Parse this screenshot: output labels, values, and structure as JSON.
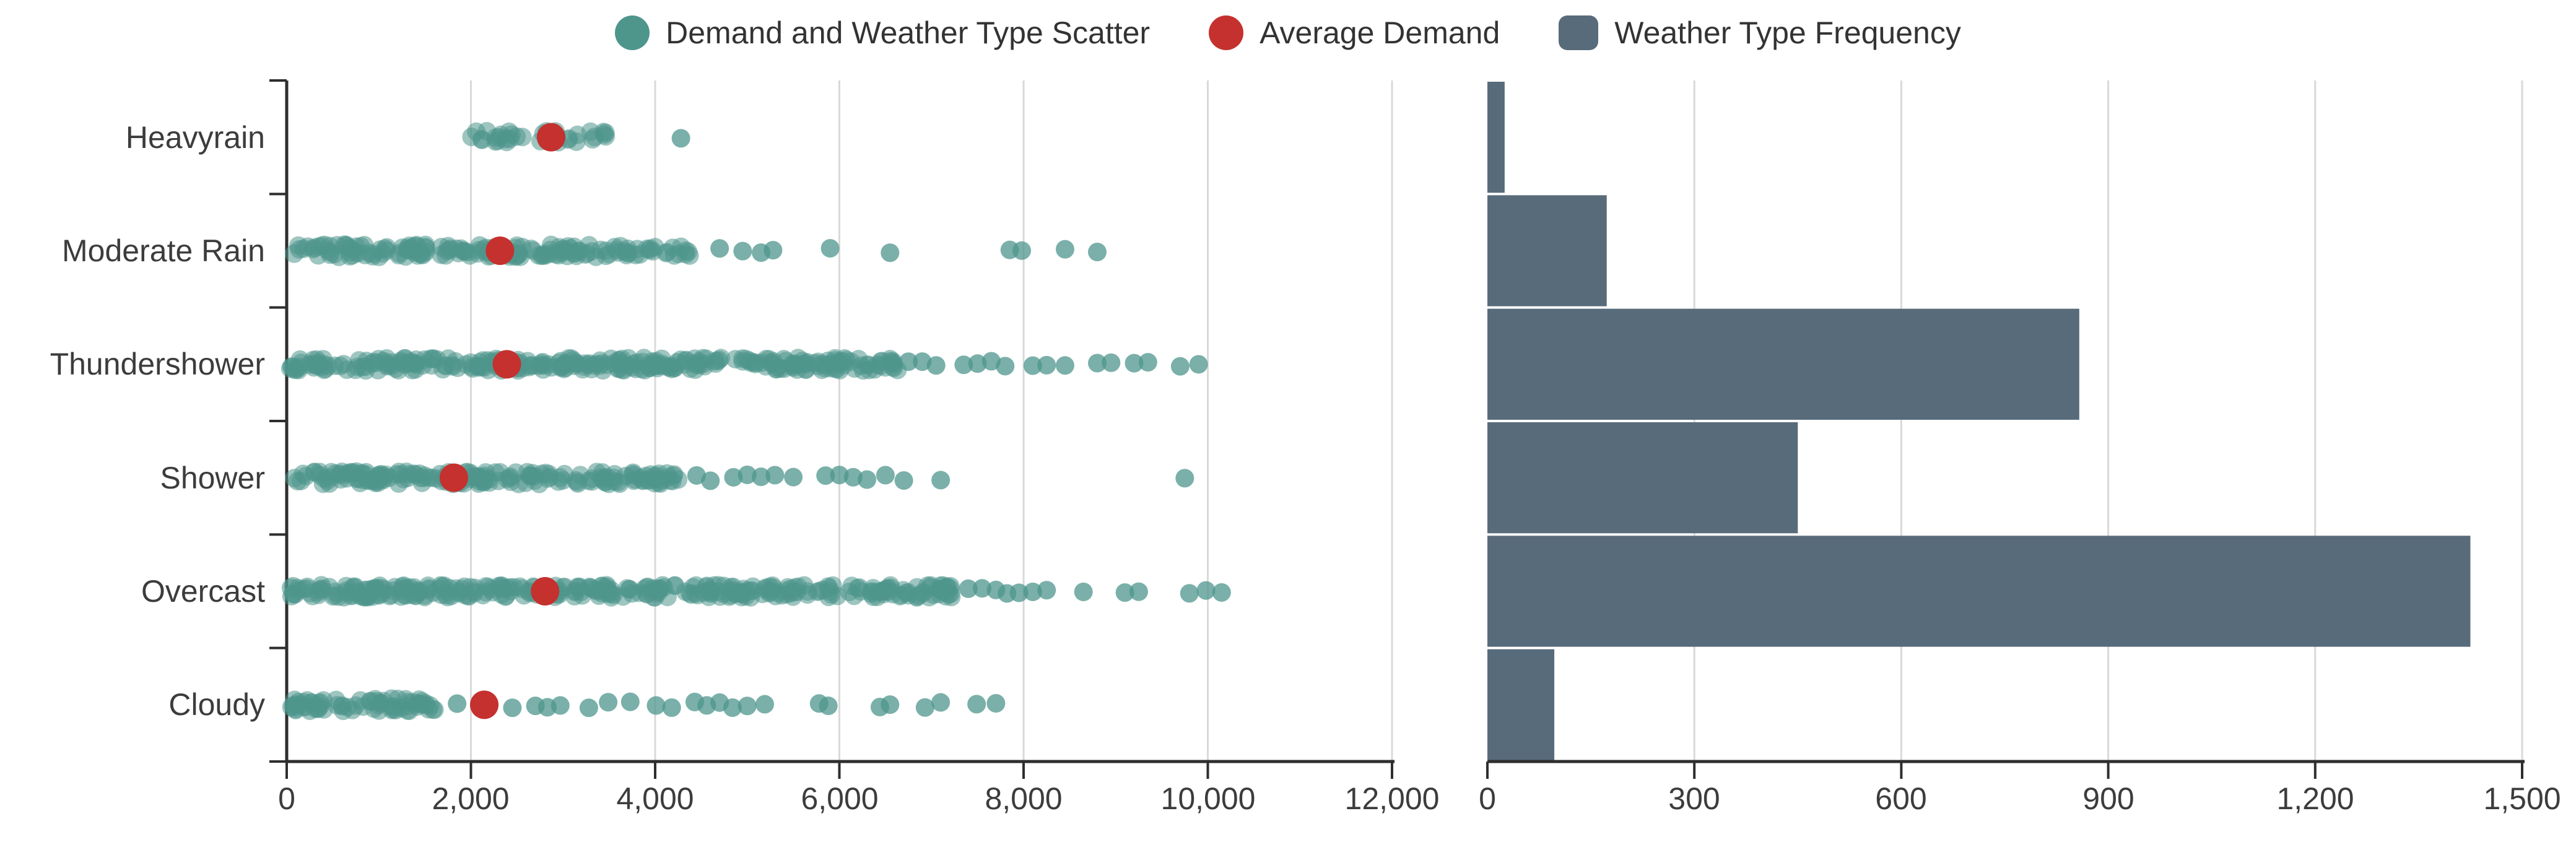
{
  "legend": {
    "items": [
      {
        "label": "Demand and Weather Type Scatter",
        "swatch": "circle",
        "color": "#4e958c"
      },
      {
        "label": "Average Demand",
        "swatch": "circle",
        "color": "#c4312e"
      },
      {
        "label": "Weather Type Frequency",
        "swatch": "round-rect",
        "color": "#586b7a"
      }
    ]
  },
  "chart_data": [
    {
      "type": "scatter",
      "title": "Demand and Weather Type Scatter",
      "orientation": "horizontal-strip",
      "categories": [
        "Heavyrain",
        "Moderate Rain",
        "Thundershower",
        "Shower",
        "Overcast",
        "Cloudy"
      ],
      "xlabel": "",
      "ylabel": "",
      "xlim": [
        0,
        12000
      ],
      "xticks": [
        0,
        2000,
        4000,
        6000,
        8000,
        10000,
        12000
      ],
      "xtick_labels": [
        "0",
        "2,000",
        "4,000",
        "6,000",
        "8,000",
        "10,000",
        "12,000"
      ],
      "grid": true,
      "legend_position": "top",
      "series": [
        {
          "name": "Demand and Weather Type Scatter",
          "color": "#4e958c",
          "opacity": 0.55,
          "dense_bands": [
            [
              [
                2000,
                3550,
                35
              ]
            ],
            [
              [
                40,
                4400,
                170
              ]
            ],
            [
              [
                30,
                6100,
                270
              ],
              [
                6100,
                6650,
                22
              ]
            ],
            [
              [
                30,
                4300,
                180
              ]
            ],
            [
              [
                30,
                7250,
                330
              ]
            ],
            [
              [
                30,
                1650,
                70
              ]
            ]
          ],
          "outlier_points": [
            [
              4280
            ],
            [
              4700,
              4950,
              5150,
              5280,
              5900,
              6550,
              7850,
              7980,
              8450,
              8800
            ],
            [
              6750,
              6900,
              7050,
              7350,
              7500,
              7650,
              7800,
              8100,
              8250,
              8450,
              8800,
              8950,
              9200,
              9350,
              9700,
              9900
            ],
            [
              4450,
              4600,
              4850,
              5000,
              5150,
              5300,
              5500,
              5850,
              6000,
              6150,
              6300,
              6500,
              6700,
              7100,
              9750
            ],
            [
              7400,
              7550,
              7700,
              7820,
              7950,
              8100,
              8250,
              8650,
              9100,
              9250,
              9800,
              9980,
              10150
            ],
            [
              1850,
              2450,
              2700,
              2830,
              2970,
              3280,
              3490,
              3730,
              4010,
              4180,
              4430,
              4560,
              4700,
              4840,
              5000,
              5190,
              5780,
              5880,
              6440,
              6550,
              6930,
              7100,
              7490,
              7700
            ]
          ]
        },
        {
          "name": "Average Demand",
          "color": "#c4312e",
          "values": [
            2870,
            2315,
            2390,
            1815,
            2805,
            2145
          ]
        }
      ]
    },
    {
      "type": "bar",
      "title": "Weather Type Frequency",
      "orientation": "horizontal",
      "categories": [
        "Heavyrain",
        "Moderate Rain",
        "Thundershower",
        "Shower",
        "Overcast",
        "Cloudy"
      ],
      "values": [
        25,
        173,
        858,
        450,
        1425,
        97
      ],
      "color": "#586b7a",
      "xlim": [
        0,
        1500
      ],
      "xticks": [
        0,
        300,
        600,
        900,
        1200,
        1500
      ],
      "xtick_labels": [
        "0",
        "300",
        "600",
        "900",
        "1,200",
        "1,500"
      ],
      "grid": true
    }
  ]
}
